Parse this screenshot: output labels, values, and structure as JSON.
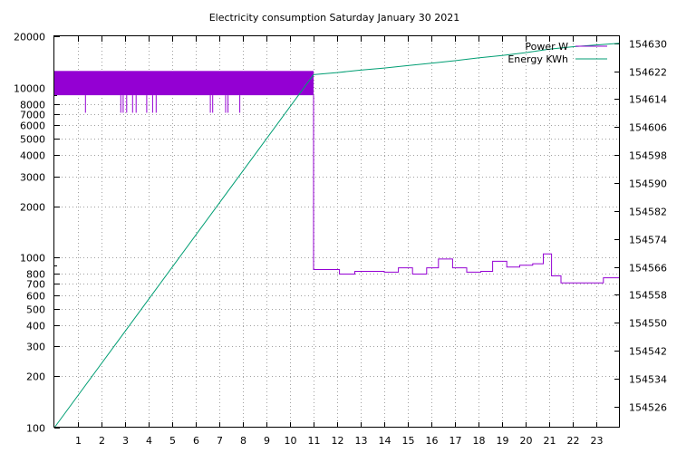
{
  "chart_data": {
    "type": "line",
    "title": "Electricity consumption Saturday January 30 2021",
    "xlabel": "",
    "ylabel": "",
    "y2label": "",
    "x_range": [
      0,
      24
    ],
    "x_ticks": [
      1,
      2,
      3,
      4,
      5,
      6,
      7,
      8,
      9,
      10,
      11,
      12,
      13,
      14,
      15,
      16,
      17,
      18,
      19,
      20,
      21,
      22,
      23
    ],
    "y_scale": "log",
    "y_range": [
      100,
      20000
    ],
    "y_ticks": [
      100,
      200,
      300,
      400,
      500,
      600,
      700,
      800,
      1000,
      2000,
      3000,
      4000,
      5000,
      6000,
      7000,
      8000,
      10000,
      20000
    ],
    "y2_range": [
      154520,
      154632
    ],
    "y2_ticks": [
      154526,
      154534,
      154542,
      154550,
      154558,
      154566,
      154574,
      154582,
      154590,
      154598,
      154606,
      154614,
      154622,
      154630
    ],
    "grid": true,
    "legend_position": "top-right",
    "series": [
      {
        "name": "Power W",
        "color": "#9400d3",
        "axis": "y1",
        "band": {
          "x_start": 0,
          "x_end": 11.0,
          "low": 9000,
          "high": 12500
        },
        "dips": [
          {
            "x": 1.3,
            "value": 7100
          },
          {
            "x": 2.8,
            "value": 7100
          },
          {
            "x": 2.9,
            "value": 7100
          },
          {
            "x": 3.05,
            "value": 7100
          },
          {
            "x": 3.3,
            "value": 7100
          },
          {
            "x": 3.45,
            "value": 7100
          },
          {
            "x": 3.9,
            "value": 7100
          },
          {
            "x": 4.15,
            "value": 7100
          },
          {
            "x": 4.3,
            "value": 7100
          },
          {
            "x": 6.6,
            "value": 7100
          },
          {
            "x": 6.7,
            "value": 7100
          },
          {
            "x": 7.25,
            "value": 7100
          },
          {
            "x": 7.35,
            "value": 7100
          },
          {
            "x": 7.85,
            "value": 7100
          }
        ],
        "steps": [
          {
            "x": 11.0,
            "value": 850
          },
          {
            "x": 12.1,
            "value": 800
          },
          {
            "x": 12.75,
            "value": 830
          },
          {
            "x": 14.0,
            "value": 820
          },
          {
            "x": 14.6,
            "value": 870
          },
          {
            "x": 15.2,
            "value": 800
          },
          {
            "x": 15.8,
            "value": 870
          },
          {
            "x": 16.3,
            "value": 980
          },
          {
            "x": 16.9,
            "value": 870
          },
          {
            "x": 17.5,
            "value": 820
          },
          {
            "x": 18.1,
            "value": 830
          },
          {
            "x": 18.6,
            "value": 950
          },
          {
            "x": 19.2,
            "value": 880
          },
          {
            "x": 19.75,
            "value": 900
          },
          {
            "x": 20.3,
            "value": 920
          },
          {
            "x": 20.75,
            "value": 1050
          },
          {
            "x": 21.1,
            "value": 780
          },
          {
            "x": 21.5,
            "value": 710
          },
          {
            "x": 22.7,
            "value": 710
          },
          {
            "x": 23.3,
            "value": 760
          },
          {
            "x": 24.0,
            "value": 760
          }
        ]
      },
      {
        "name": "Energy KWh",
        "color": "#009e73",
        "axis": "y2",
        "points": [
          {
            "x": 0,
            "y": 154520
          },
          {
            "x": 11.0,
            "y": 154621
          },
          {
            "x": 12.0,
            "y": 154621.6
          },
          {
            "x": 13.0,
            "y": 154622.3
          },
          {
            "x": 14.0,
            "y": 154622.9
          },
          {
            "x": 15.0,
            "y": 154623.6
          },
          {
            "x": 16.0,
            "y": 154624.3
          },
          {
            "x": 17.0,
            "y": 154625.0
          },
          {
            "x": 18.0,
            "y": 154625.8
          },
          {
            "x": 19.0,
            "y": 154626.5
          },
          {
            "x": 20.0,
            "y": 154627.3
          },
          {
            "x": 21.0,
            "y": 154628.3
          },
          {
            "x": 22.0,
            "y": 154629.0
          },
          {
            "x": 23.0,
            "y": 154629.5
          },
          {
            "x": 24.0,
            "y": 154630.0
          }
        ]
      }
    ]
  }
}
